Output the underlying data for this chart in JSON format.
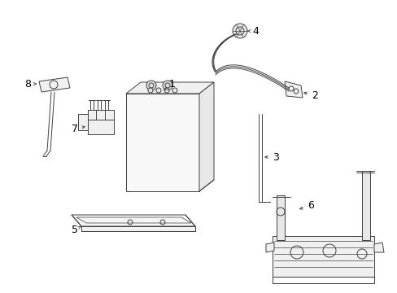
{
  "background_color": "#ffffff",
  "line_color": "#404040",
  "label_color": "#000000",
  "fig_width": 4.89,
  "fig_height": 3.6,
  "dpi": 100
}
